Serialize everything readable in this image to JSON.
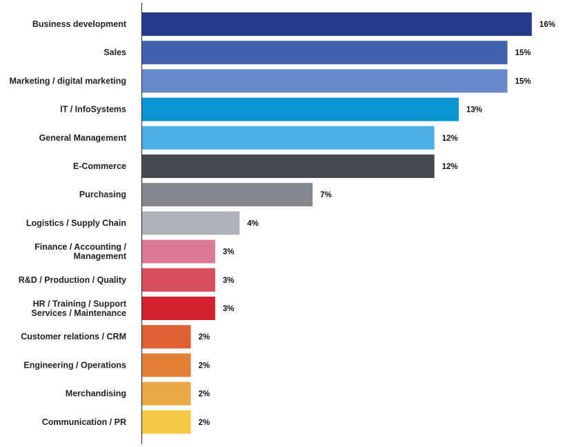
{
  "chart_data": {
    "type": "bar",
    "orientation": "horizontal",
    "title": "",
    "xlabel": "",
    "ylabel": "",
    "categories": [
      "Business development",
      "Sales",
      "Marketing / digital marketing",
      "IT / InfoSystems",
      "General Management",
      "E-Commerce",
      "Purchasing",
      "Logistics / Supply Chain",
      "Finance / Accounting / Management",
      "R&D / Production / Quality",
      "HR / Training / Support Services / Maintenance",
      "Customer relations / CRM",
      "Engineering / Operations",
      "Merchandising",
      "Communication / PR"
    ],
    "category_lines": [
      [
        "Business development"
      ],
      [
        "Sales"
      ],
      [
        "Marketing / digital marketing"
      ],
      [
        "IT / InfoSystems"
      ],
      [
        "General Management"
      ],
      [
        "E-Commerce"
      ],
      [
        "Purchasing"
      ],
      [
        "Logistics / Supply Chain"
      ],
      [
        "Finance / Accounting /",
        "Management"
      ],
      [
        "R&D / Production / Quality"
      ],
      [
        "HR / Training / Support",
        "Services / Maintenance"
      ],
      [
        "Customer relations / CRM"
      ],
      [
        "Engineering / Operations"
      ],
      [
        "Merchandising"
      ],
      [
        "Communication / PR"
      ]
    ],
    "values": [
      16,
      15,
      15,
      13,
      12,
      12,
      7,
      4,
      3,
      3,
      3,
      2,
      2,
      2,
      2
    ],
    "value_labels": [
      "16%",
      "15%",
      "15%",
      "13%",
      "12%",
      "12%",
      "7%",
      "4%",
      "3%",
      "3%",
      "3%",
      "2%",
      "2%",
      "2%",
      "2%"
    ],
    "colors": [
      "#263a8a",
      "#4262ae",
      "#6a8bca",
      "#0996d0",
      "#4eb0e4",
      "#45484c",
      "#85898e",
      "#adb3b8",
      "#de7a95",
      "#d84e5d",
      "#d2202f",
      "#dc6234",
      "#e28038",
      "#e9a944",
      "#f6c944"
    ],
    "unit": "%",
    "grid": false,
    "legend": "none"
  }
}
